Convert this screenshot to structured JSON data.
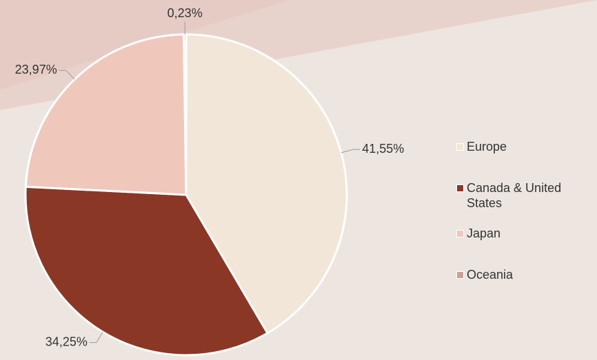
{
  "chart_data": {
    "type": "pie",
    "categories": [
      "Europe",
      "Canada & United States",
      "Japan",
      "Oceania"
    ],
    "values": [
      41.55,
      34.25,
      23.97,
      0.23
    ],
    "value_labels": [
      "41,55%",
      "34,25%",
      "23,97%",
      "0,23%"
    ],
    "colors": [
      "#f2e6d8",
      "#8a3726",
      "#f0c7bb",
      "#c9a197"
    ],
    "legend": "right"
  }
}
